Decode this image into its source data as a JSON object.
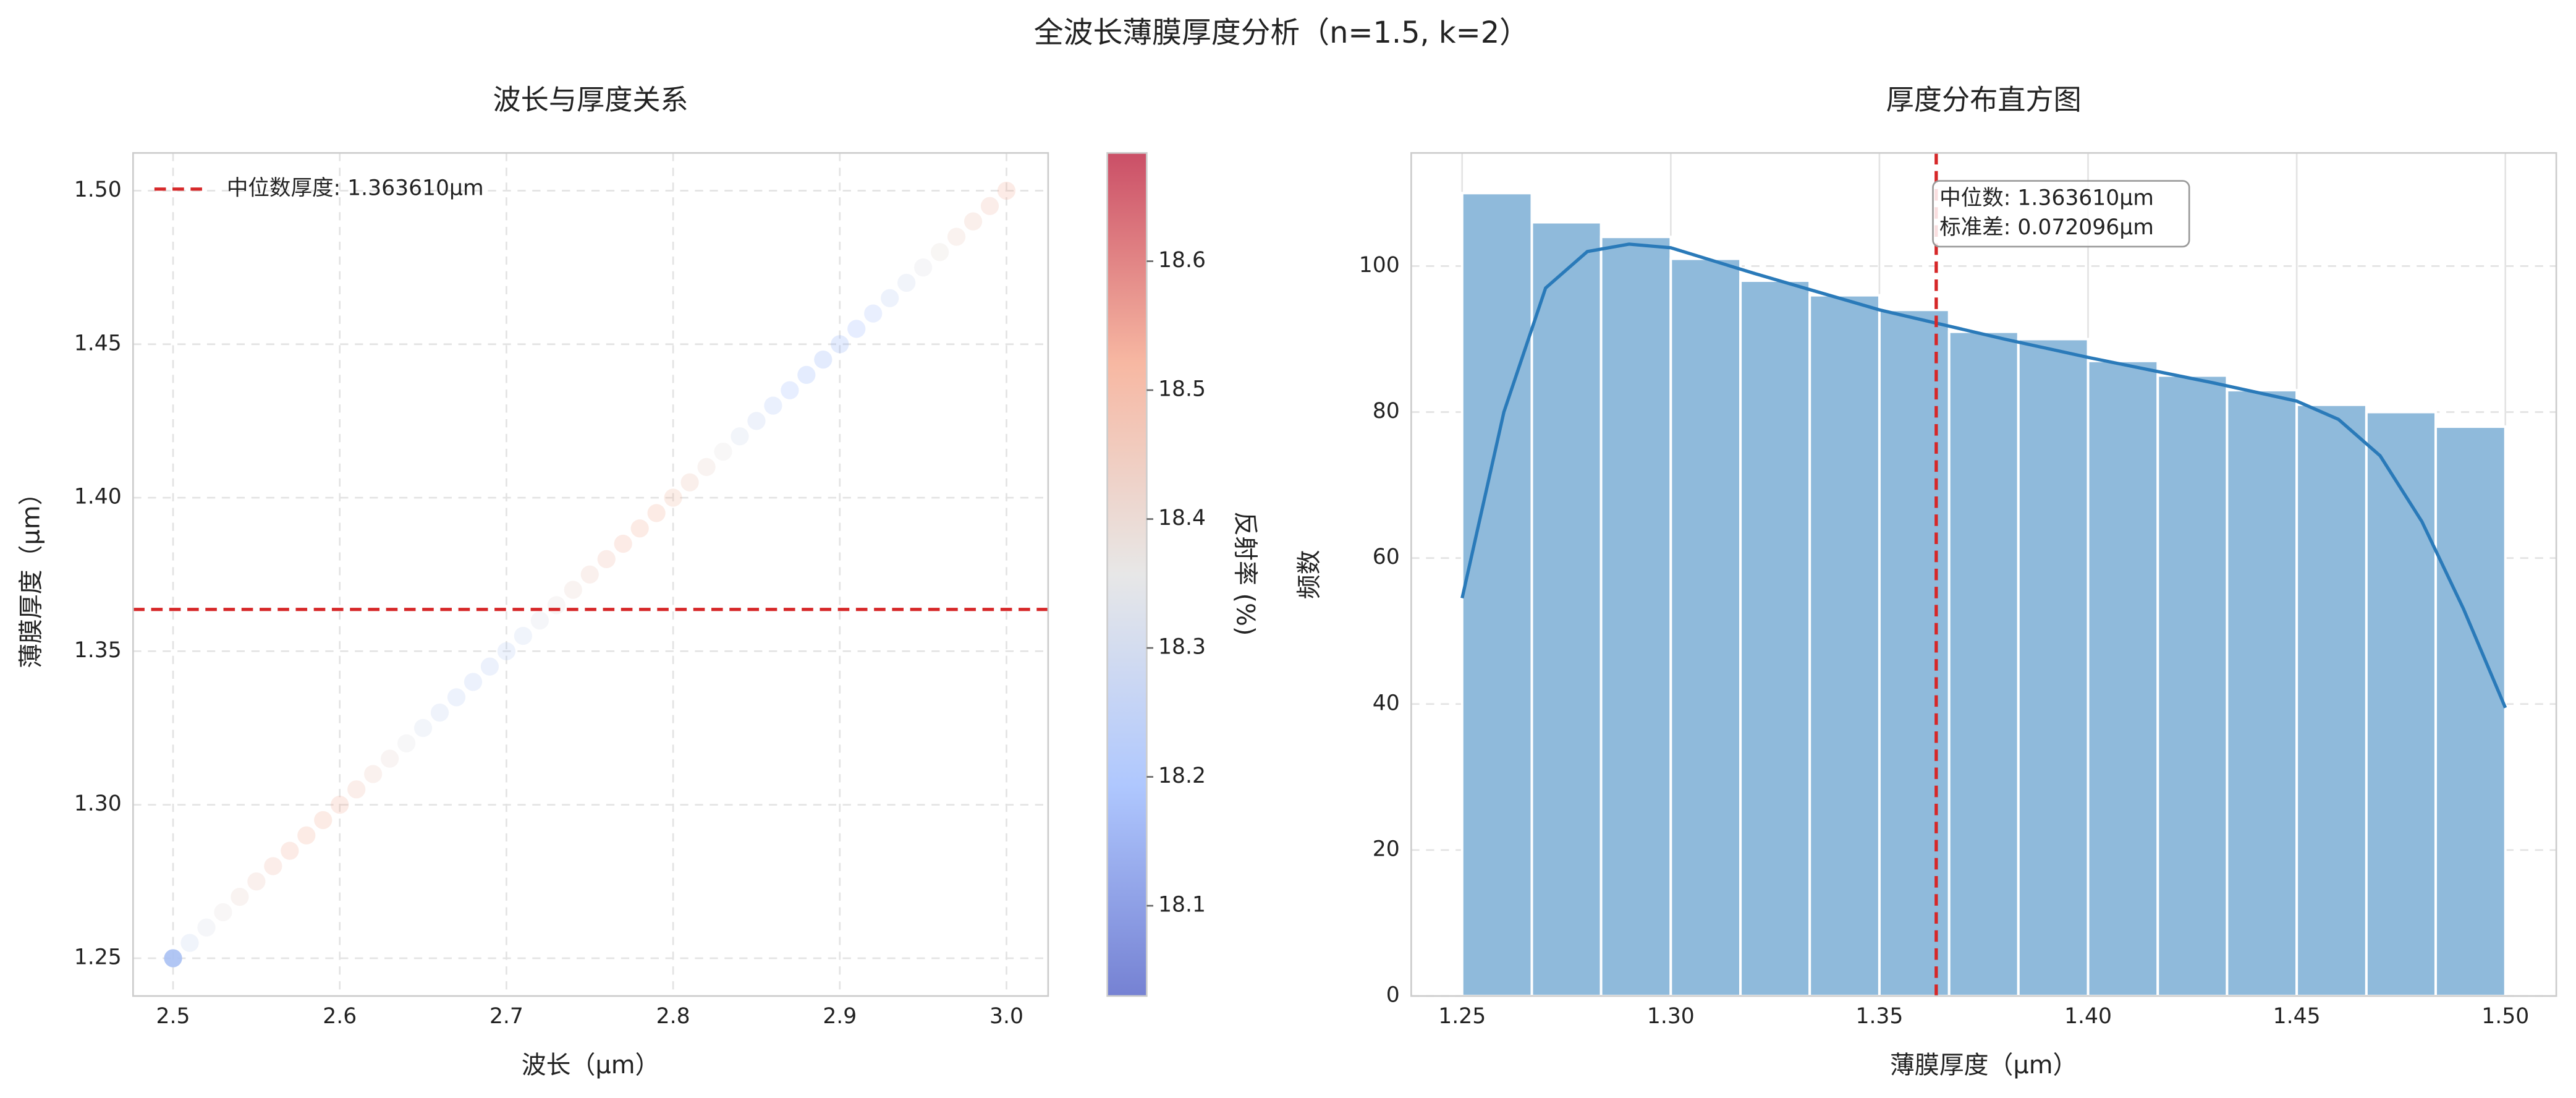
{
  "title": "全波长薄膜厚度分析（n=1.5, k=2）",
  "chart_data": [
    {
      "type": "scatter",
      "title": "波长与厚度关系",
      "xlabel": "波长（μm）",
      "ylabel": "薄膜厚度（μm）",
      "x": [
        2.5,
        2.51,
        2.52,
        2.53,
        2.54,
        2.55,
        2.56,
        2.57,
        2.58,
        2.59,
        2.6,
        2.61,
        2.62,
        2.63,
        2.64,
        2.65,
        2.66,
        2.67,
        2.68,
        2.69,
        2.7,
        2.71,
        2.72,
        2.73,
        2.74,
        2.75,
        2.76,
        2.77,
        2.78,
        2.79,
        2.8,
        2.81,
        2.82,
        2.83,
        2.84,
        2.85,
        2.86,
        2.87,
        2.88,
        2.89,
        2.9,
        2.91,
        2.92,
        2.93,
        2.94,
        2.95,
        2.96,
        2.97,
        2.98,
        2.99,
        3.0
      ],
      "y": [
        1.25,
        1.255,
        1.26,
        1.265,
        1.27,
        1.275,
        1.28,
        1.285,
        1.29,
        1.295,
        1.3,
        1.305,
        1.31,
        1.315,
        1.32,
        1.325,
        1.33,
        1.335,
        1.34,
        1.345,
        1.35,
        1.355,
        1.36,
        1.365,
        1.37,
        1.375,
        1.38,
        1.385,
        1.39,
        1.395,
        1.4,
        1.405,
        1.41,
        1.415,
        1.42,
        1.425,
        1.43,
        1.435,
        1.44,
        1.445,
        1.45,
        1.455,
        1.46,
        1.465,
        1.47,
        1.475,
        1.48,
        1.485,
        1.49,
        1.495,
        1.5
      ],
      "color_values": [
        18.25,
        18.29,
        18.33,
        18.37,
        18.41,
        18.44,
        18.47,
        18.49,
        18.5,
        18.5,
        18.49,
        18.46,
        18.43,
        18.39,
        18.35,
        18.31,
        18.28,
        18.26,
        18.25,
        18.25,
        18.26,
        18.29,
        18.33,
        18.37,
        18.41,
        18.44,
        18.47,
        18.49,
        18.5,
        18.5,
        18.48,
        18.45,
        18.41,
        18.36,
        18.31,
        18.27,
        18.23,
        18.2,
        18.18,
        18.17,
        18.17,
        18.19,
        18.22,
        18.26,
        18.3,
        18.34,
        18.38,
        18.42,
        18.45,
        18.47,
        18.49
      ],
      "xlim": [
        2.476,
        3.025
      ],
      "ylim": [
        1.2377,
        1.5123
      ],
      "xticks": [
        2.5,
        2.6,
        2.7,
        2.8,
        2.9,
        {
          "value": 3,
          "label": "3.0"
        }
      ],
      "yticks": [
        1.25,
        {
          "value": 1.3,
          "label": "1.30"
        },
        1.35,
        {
          "value": 1.4,
          "label": "1.40"
        },
        1.45,
        {
          "value": 1.5,
          "label": "1.50"
        }
      ],
      "grid": true,
      "colormap": "coolwarm",
      "clim": [
        18.03,
        18.684
      ],
      "cticks": [
        18.1,
        18.2,
        18.3,
        18.4,
        18.5,
        18.6
      ],
      "clabel": "反射率 (%)",
      "hline": {
        "value": 1.36361,
        "color": "#d62728",
        "label": "中位数厚度: 1.363610μm"
      },
      "legend": "upper left"
    },
    {
      "type": "histogram",
      "title": "厚度分布直方图",
      "xlabel": "薄膜厚度（μm）",
      "ylabel": "频数",
      "bins": [
        1.25,
        1.2667,
        1.2833,
        1.3,
        1.3167,
        1.3333,
        1.35,
        1.3667,
        1.3833,
        1.4,
        1.4167,
        1.4333,
        1.45,
        1.4667,
        1.4833,
        1.5
      ],
      "counts": [
        110,
        106,
        104,
        101,
        98,
        96,
        94,
        91,
        90,
        87,
        85,
        83,
        81,
        80,
        78
      ],
      "color": "#8fbadb",
      "kde": {
        "x": [
          1.25,
          1.26,
          1.27,
          1.28,
          1.29,
          1.3,
          1.32,
          1.35,
          1.38,
          1.4,
          1.43,
          1.45,
          1.46,
          1.47,
          1.48,
          1.49,
          1.5
        ],
        "values": [
          54.5,
          80,
          97,
          102,
          103,
          102.5,
          99,
          94,
          90,
          87.5,
          84,
          81.5,
          79,
          74,
          65,
          53,
          39.5
        ],
        "color": "#2a7ab9"
      },
      "xlim": [
        1.2378,
        1.5122
      ],
      "ylim": [
        0,
        115.5
      ],
      "xticks": [
        1.25,
        {
          "value": 1.3,
          "label": "1.30"
        },
        1.35,
        {
          "value": 1.4,
          "label": "1.40"
        },
        1.45,
        {
          "value": 1.5,
          "label": "1.50"
        }
      ],
      "yticks": [
        0,
        20,
        40,
        60,
        80,
        100
      ],
      "grid": true,
      "vline": {
        "value": 1.36361,
        "color": "#d62728"
      },
      "annotation": [
        "中位数: 1.363610μm",
        "标准差: 0.072096μm"
      ]
    }
  ]
}
